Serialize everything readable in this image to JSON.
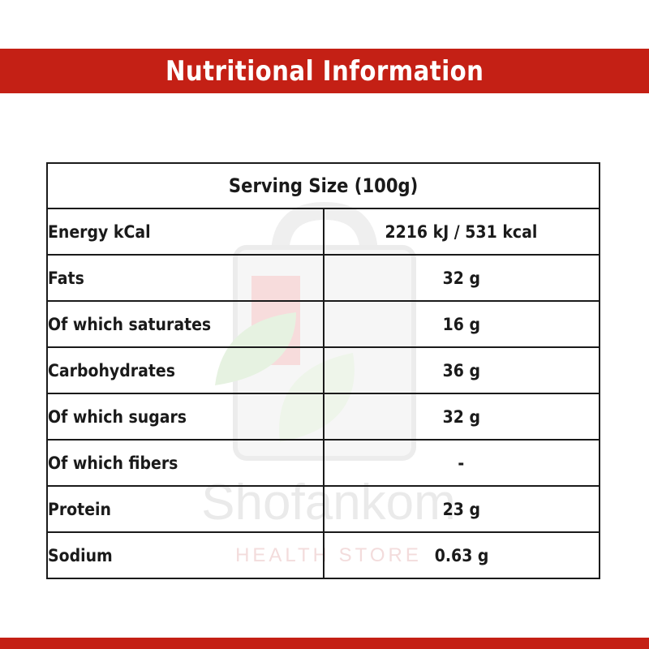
{
  "title": "Nutritional Information",
  "serving_size": "Serving Size (100g)",
  "rows": [
    {
      "label": "Energy kCal",
      "value": "2216 kJ / 531 kcal"
    },
    {
      "label": "Fats",
      "value": "32 g"
    },
    {
      "label": "Of which saturates",
      "value": "16 g"
    },
    {
      "label": "Carbohydrates",
      "value": "36 g"
    },
    {
      "label": "Of which sugars",
      "value": "32 g"
    },
    {
      "label": "Of which fibers",
      "value": "-"
    },
    {
      "label": "Protein",
      "value": "23 g"
    },
    {
      "label": "Sodium",
      "value": "0.63 g"
    }
  ],
  "watermark": {
    "brand": "Shofankom",
    "tagline": "HEALTH STORE",
    "icon": "shopping-bag-leaf-icon"
  },
  "colors": {
    "accent": "#c42015",
    "serving_text": "#e31b14",
    "text": "#1a1a1a"
  }
}
